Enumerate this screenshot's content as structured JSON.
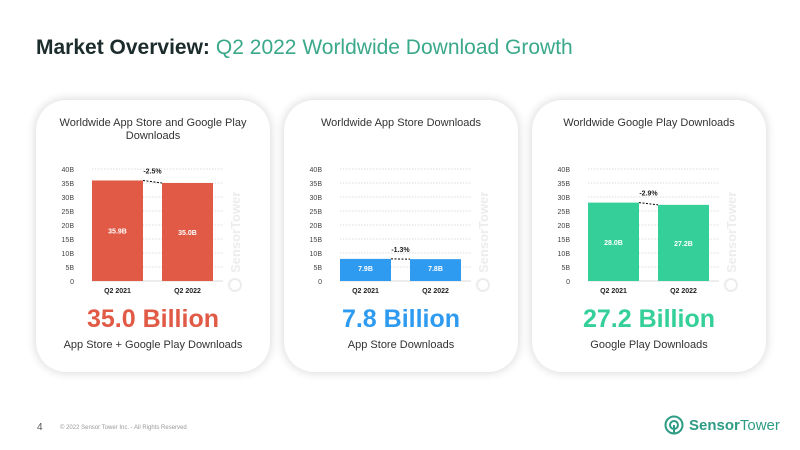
{
  "header": {
    "title_bold": "Market Overview:",
    "title_light": "Q2 2022 Worldwide Download Growth"
  },
  "footer": {
    "page_number": "4",
    "copyright": "© 2022 Sensor Tower Inc. - All Rights Reserved"
  },
  "logo": {
    "bold": "Sensor",
    "light": "Tower",
    "icon": "sensor-tower-logo-icon"
  },
  "watermark": "SensorTower",
  "cards": [
    {
      "title": "Worldwide App Store and Google Play Downloads",
      "big": "35.0 Billion",
      "sub": "App Store + Google Play Downloads",
      "color": "#e05a45"
    },
    {
      "title": "Worldwide App Store Downloads",
      "big": "7.8 Billion",
      "sub": "App Store Downloads",
      "color": "#2f9bf0"
    },
    {
      "title": "Worldwide Google Play Downloads",
      "big": "27.2 Billion",
      "sub": "Google Play Downloads",
      "color": "#35d099"
    }
  ],
  "chart_data": [
    {
      "type": "bar",
      "title": "Worldwide App Store and Google Play Downloads",
      "categories": [
        "Q2 2021",
        "Q2 2022"
      ],
      "values": [
        35.9,
        35.0
      ],
      "data_labels": [
        "35.9B",
        "35.0B"
      ],
      "change_label": "-2.5%",
      "yticks": [
        "0",
        "5B",
        "10B",
        "15B",
        "20B",
        "25B",
        "30B",
        "35B",
        "40B"
      ],
      "ylim": [
        0,
        40
      ],
      "grid": true,
      "color": "#e05a45"
    },
    {
      "type": "bar",
      "title": "Worldwide App Store Downloads",
      "categories": [
        "Q2 2021",
        "Q2 2022"
      ],
      "values": [
        7.9,
        7.8
      ],
      "data_labels": [
        "7.9B",
        "7.8B"
      ],
      "change_label": "-1.3%",
      "yticks": [
        "0",
        "5B",
        "10B",
        "15B",
        "20B",
        "25B",
        "30B",
        "35B",
        "40B"
      ],
      "ylim": [
        0,
        40
      ],
      "grid": true,
      "color": "#2f9bf0"
    },
    {
      "type": "bar",
      "title": "Worldwide Google Play Downloads",
      "categories": [
        "Q2 2021",
        "Q2 2022"
      ],
      "values": [
        28.0,
        27.2
      ],
      "data_labels": [
        "28.0B",
        "27.2B"
      ],
      "change_label": "-2.9%",
      "yticks": [
        "0",
        "5B",
        "10B",
        "15B",
        "20B",
        "25B",
        "30B",
        "35B",
        "40B"
      ],
      "ylim": [
        0,
        40
      ],
      "grid": true,
      "color": "#35d099"
    }
  ]
}
